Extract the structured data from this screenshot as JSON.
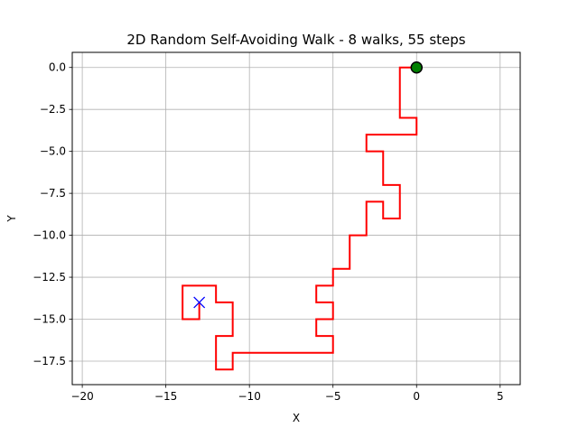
{
  "chart_data": {
    "type": "line",
    "title": "2D Random Self-Avoiding Walk - 8 walks, 55 steps",
    "xlabel": "X",
    "ylabel": "Y",
    "xlim": [
      -20.6,
      6.2
    ],
    "ylim": [
      -18.9,
      0.9
    ],
    "xticks": [
      -20,
      -15,
      -10,
      -5,
      0,
      5
    ],
    "yticks": [
      0.0,
      -2.5,
      -5.0,
      -7.5,
      -10.0,
      -12.5,
      -15.0,
      -17.5
    ],
    "xtick_labels": [
      "−20",
      "−15",
      "−10",
      "−5",
      "0",
      "5"
    ],
    "ytick_labels": [
      "0.0",
      "−2.5",
      "−5.0",
      "−7.5",
      "−10.0",
      "−12.5",
      "−15.0",
      "−17.5"
    ],
    "grid": true,
    "series": [
      {
        "color": "#ff0000",
        "points": [
          [
            0,
            0
          ],
          [
            -1,
            0
          ],
          [
            -1,
            -3
          ],
          [
            0,
            -3
          ],
          [
            0,
            -4
          ],
          [
            -3,
            -4
          ],
          [
            -3,
            -5
          ],
          [
            -2,
            -5
          ],
          [
            -2,
            -7
          ],
          [
            -1,
            -7
          ],
          [
            -1,
            -9
          ],
          [
            -2,
            -9
          ],
          [
            -2,
            -8
          ],
          [
            -3,
            -8
          ],
          [
            -3,
            -10
          ],
          [
            -4,
            -10
          ],
          [
            -4,
            -12
          ],
          [
            -5,
            -12
          ],
          [
            -5,
            -13
          ],
          [
            -6,
            -13
          ],
          [
            -6,
            -14
          ],
          [
            -5,
            -14
          ],
          [
            -5,
            -15
          ],
          [
            -6,
            -15
          ],
          [
            -6,
            -16
          ],
          [
            -5,
            -16
          ],
          [
            -5,
            -17
          ],
          [
            -11,
            -17
          ],
          [
            -11,
            -18
          ],
          [
            -12,
            -18
          ],
          [
            -12,
            -16
          ],
          [
            -11,
            -16
          ],
          [
            -11,
            -14
          ],
          [
            -12,
            -14
          ],
          [
            -12,
            -13
          ],
          [
            -14,
            -13
          ],
          [
            -14,
            -15
          ],
          [
            -13,
            -15
          ],
          [
            -13,
            -14
          ]
        ]
      }
    ],
    "start_marker": {
      "point": [
        0,
        0
      ],
      "color": "#008000"
    },
    "end_marker": {
      "point": [
        -13,
        -14
      ],
      "color": "#0000ff"
    }
  }
}
